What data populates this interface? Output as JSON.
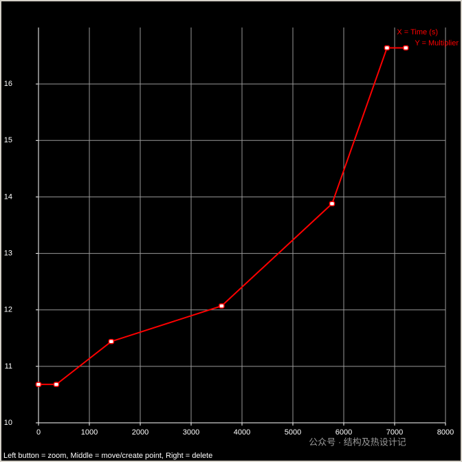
{
  "chart_data": {
    "type": "line",
    "x_label": "X = Time (s)",
    "y_label": "Y = Multiplier",
    "x": [
      0,
      350,
      1430,
      3600,
      5770,
      6850,
      7220
    ],
    "series": [
      {
        "color": "#ff0000",
        "values": [
          10.68,
          10.68,
          11.44,
          12.07,
          13.88,
          16.64,
          16.64
        ]
      }
    ],
    "xlim": [
      0,
      8000
    ],
    "xticks": [
      0,
      1000,
      2000,
      3000,
      4000,
      5000,
      6000,
      7000,
      8000
    ],
    "ylim": [
      10,
      17
    ],
    "yticks": [
      10,
      11,
      12,
      13,
      14,
      15,
      16
    ],
    "grid": true
  },
  "status_bar": "Left button = zoom, Middle = move/create point, Right = delete",
  "watermark": "公众号 · 结构及热设计记"
}
